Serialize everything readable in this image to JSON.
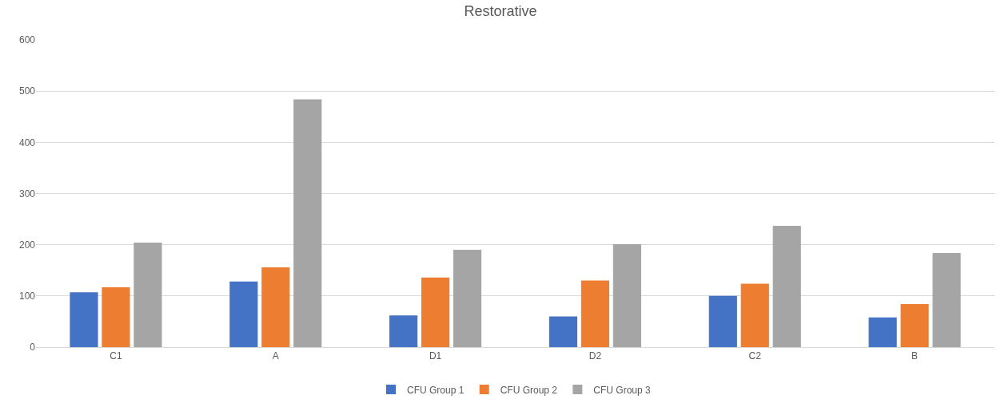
{
  "chart_data": {
    "type": "bar",
    "title": "Restorative",
    "categories": [
      "C1",
      "A",
      "D1",
      "D2",
      "C2",
      "B"
    ],
    "series": [
      {
        "name": "CFU Group 1",
        "color": "#4472c4",
        "values": [
          107,
          128,
          62,
          60,
          100,
          58
        ]
      },
      {
        "name": "CFU Group 2",
        "color": "#ed7d31",
        "values": [
          117,
          156,
          136,
          130,
          124,
          84
        ]
      },
      {
        "name": "CFU Group 3",
        "color": "#a5a5a5",
        "values": [
          204,
          484,
          190,
          201,
          237,
          184
        ]
      }
    ],
    "ylim": [
      0,
      600
    ],
    "yticks": [
      0,
      100,
      200,
      300,
      400,
      500,
      600
    ],
    "grid": "y",
    "legend": "bottom"
  }
}
